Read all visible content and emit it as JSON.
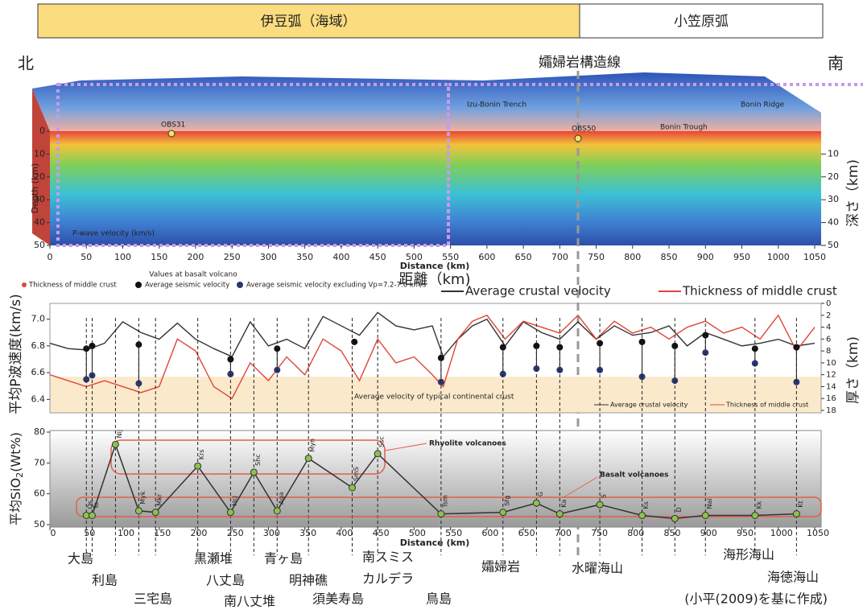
{
  "header": {
    "izu": "伊豆弧（海域）",
    "bonin": "小笠原弧",
    "north": "北",
    "south": "南",
    "tectonic_line": "孀婦岩構造線"
  },
  "chart_data": [
    {
      "type": "section",
      "xlabel": "Distance (km)",
      "xlabel_ja": "距離（km)",
      "ylabel": "Depth (km)",
      "y2label": "深さ（km)",
      "xlim": [
        0,
        1050
      ],
      "xticks": [
        0,
        50,
        100,
        150,
        200,
        250,
        300,
        350,
        400,
        450,
        500,
        550,
        600,
        650,
        700,
        750,
        800,
        850,
        900,
        950,
        1000,
        1050
      ],
      "ylim": [
        50,
        0
      ],
      "yticks": [
        0,
        10,
        20,
        30,
        40,
        50
      ],
      "y2ticks": [
        10,
        20,
        30,
        40,
        50
      ],
      "annotations": [
        "OBS31",
        "OBS50",
        "Izu-Bonin Trench",
        "Bonin Trough",
        "Bonin Ridge",
        "P-wave velocity (km/s)"
      ]
    },
    {
      "type": "line",
      "ylabel": "平均P波速度(km/s)",
      "y2label": "厚さ（km)",
      "xlim": [
        0,
        1050
      ],
      "ylim": [
        6.3,
        7.1
      ],
      "yticks": [
        6.4,
        6.6,
        6.8,
        {
          "value": 7,
          "label": "7.0"
        }
      ],
      "y2lim": [
        0,
        18
      ],
      "y2_inverted": true,
      "y2ticks": [
        0,
        2,
        4,
        6,
        8,
        10,
        12,
        14,
        16,
        18
      ],
      "band_label": "Average velocity of typical continental crust",
      "band": [
        6.3,
        6.57
      ],
      "legend_title": "Values at basalt volcano",
      "legend_point_label": "Thickness of middle crust",
      "x": [
        0,
        25,
        50,
        75,
        100,
        125,
        150,
        175,
        200,
        225,
        250,
        275,
        300,
        325,
        350,
        375,
        400,
        425,
        450,
        475,
        500,
        525,
        540,
        560,
        580,
        600,
        625,
        650,
        675,
        700,
        725,
        750,
        775,
        800,
        825,
        850,
        875,
        900,
        925,
        950,
        975,
        1000,
        1025,
        1050
      ],
      "series": [
        {
          "name": "Average crustal velocity",
          "color": "#333333",
          "values": [
            6.82,
            6.78,
            6.77,
            6.82,
            6.98,
            6.9,
            6.85,
            6.97,
            6.85,
            6.78,
            6.72,
            6.98,
            6.8,
            6.85,
            6.78,
            7.02,
            6.95,
            6.88,
            7.05,
            6.95,
            6.92,
            6.95,
            6.72,
            6.85,
            6.95,
            7.0,
            6.8,
            6.98,
            6.9,
            6.85,
            6.98,
            6.85,
            6.95,
            6.88,
            6.9,
            6.95,
            6.8,
            6.9,
            6.85,
            6.8,
            6.82,
            6.85,
            6.8,
            6.82
          ]
        },
        {
          "name": "Thickness of middle crust",
          "color": "#e0453a",
          "axis": "y2",
          "values": [
            12,
            13,
            14,
            13,
            14,
            15,
            14,
            6,
            8,
            14,
            16,
            10,
            13,
            9,
            12,
            6,
            8,
            13,
            6,
            10,
            9,
            12,
            14,
            6,
            3,
            2,
            6,
            3,
            4,
            5,
            2,
            6,
            3,
            5,
            4,
            6,
            4,
            3,
            5,
            4,
            6,
            2,
            8,
            4
          ]
        }
      ],
      "volcano_x": [
        50,
        58,
        122,
        248,
        312,
        418,
        537,
        622,
        668,
        700,
        755,
        813,
        858,
        900,
        968,
        1025
      ],
      "points": [
        {
          "name": "Average seismic velocity",
          "color": "#111111",
          "values": [
            6.78,
            6.8,
            6.81,
            6.7,
            6.78,
            6.83,
            6.71,
            6.79,
            6.8,
            6.79,
            6.82,
            6.83,
            6.8,
            6.88,
            6.78,
            6.79
          ]
        },
        {
          "name": "Average seismic velocity excluding Vp=7.2-7.6 km/s",
          "color": "#2b3770",
          "values": [
            6.55,
            6.58,
            6.52,
            6.59,
            6.62,
            null,
            6.53,
            6.59,
            6.63,
            6.62,
            6.62,
            6.57,
            6.54,
            6.75,
            6.67,
            6.53
          ]
        }
      ]
    },
    {
      "type": "scatter-line",
      "ylabel": "平均SiO",
      "ylabel_sub": "2",
      "ylabel_end": "(Wt%)",
      "xlabel": "Distance (km)",
      "xlim": [
        0,
        1050
      ],
      "xticks": [
        0,
        50,
        100,
        150,
        200,
        250,
        300,
        350,
        400,
        450,
        500,
        550,
        600,
        650,
        700,
        750,
        800,
        850,
        900,
        950,
        1000,
        1050
      ],
      "ylim": [
        50,
        80
      ],
      "yticks": [
        50,
        60,
        70,
        80
      ],
      "color": "#333333",
      "marker_color": "#8bc34a",
      "x": [
        50,
        58,
        90,
        122,
        145,
        203,
        248,
        280,
        312,
        355,
        415,
        450,
        537,
        622,
        668,
        700,
        755,
        813,
        858,
        900,
        968,
        1025
      ],
      "values": [
        53,
        53,
        76,
        54.5,
        54,
        69,
        54,
        67,
        54.5,
        71.5,
        62,
        73,
        53.5,
        54,
        57,
        53.5,
        56.5,
        53,
        52,
        53,
        53,
        53.5
      ],
      "labels": [
        "Os",
        "To",
        "Nij",
        "Myk",
        "Mkr",
        "Krs",
        "Hcj",
        "Shc",
        "Aga",
        "Myn",
        "SmS",
        "Ssc",
        "Tsm",
        "Sfg",
        "G",
        "Ka",
        "S",
        "Ks",
        "D",
        "Nai",
        "Kk",
        "Kt"
      ],
      "annotations": [
        "Rhyolite volcanoes",
        "Basalt volcanoes"
      ]
    }
  ],
  "places": [
    "大島",
    "利島",
    "三宅島",
    "黒瀬堆",
    "八丈島",
    "南八丈堆",
    "青ヶ島",
    "明神礁",
    "須美寿島",
    "南スミス",
    "カルデラ",
    "鳥島",
    "孀婦岩",
    "水曜海山",
    "海形海山",
    "海徳海山"
  ],
  "credit": "(小平(2009)を基に作成)"
}
